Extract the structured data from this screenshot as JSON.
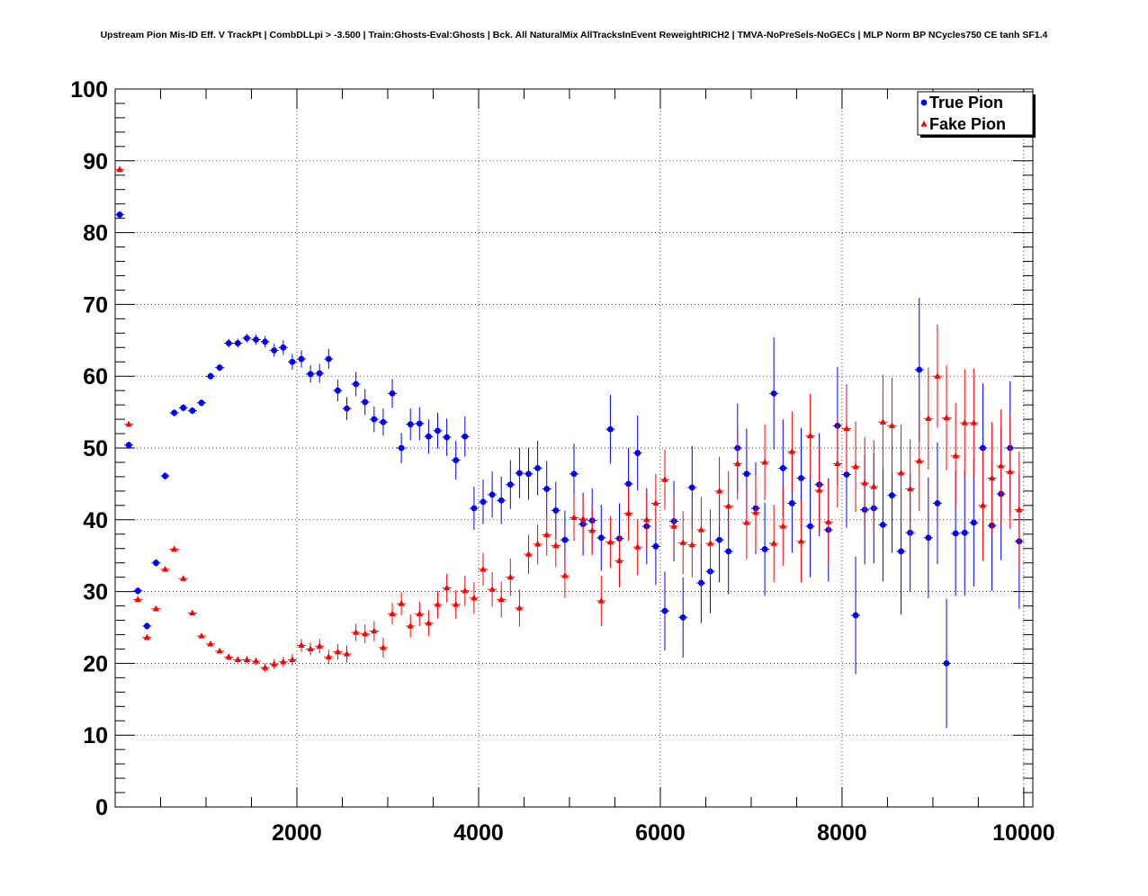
{
  "chart_data": {
    "type": "scatter",
    "title": "Upstream Pion Mis-ID Eff. V TrackPt | CombDLLpi > -3.500 | Train:Ghosts-Eval:Ghosts | Bck. All NaturalMix AllTracksInEvent ReweightRICH2 | TMVA-NoPreSels-NoGECs | MLP Norm BP NCycles750 CE tanh SF1.4",
    "xlabel": "",
    "ylabel": "",
    "xlim": [
      0,
      10100
    ],
    "ylim": [
      0,
      100
    ],
    "x_ticks": [
      "2000",
      "4000",
      "6000",
      "8000",
      "10000"
    ],
    "y_ticks": [
      "0",
      "10",
      "20",
      "30",
      "40",
      "50",
      "60",
      "70",
      "80",
      "90",
      "100"
    ],
    "grid": true,
    "legend_position": "top-right",
    "series": [
      {
        "name": "True Pion",
        "color": "#0000ff",
        "marker": "circle",
        "points": [
          [
            50,
            82.5,
            0.5
          ],
          [
            150,
            50.4,
            0.5
          ],
          [
            250,
            30.1,
            0.5
          ],
          [
            350,
            25.2,
            0.5
          ],
          [
            450,
            34.0,
            0.5
          ],
          [
            550,
            46.1,
            0.5
          ],
          [
            650,
            54.9,
            0.5
          ],
          [
            750,
            55.6,
            0.5
          ],
          [
            850,
            55.2,
            0.5
          ],
          [
            950,
            56.3,
            0.5
          ],
          [
            1050,
            60.0,
            0.5
          ],
          [
            1150,
            61.2,
            0.5
          ],
          [
            1250,
            64.6,
            0.6
          ],
          [
            1350,
            64.6,
            0.6
          ],
          [
            1450,
            65.3,
            0.6
          ],
          [
            1550,
            65.1,
            0.7
          ],
          [
            1650,
            64.8,
            0.8
          ],
          [
            1750,
            63.6,
            0.9
          ],
          [
            1850,
            64.0,
            1.0
          ],
          [
            1950,
            62.0,
            1.1
          ],
          [
            2050,
            62.4,
            1.2
          ],
          [
            2150,
            60.3,
            1.2
          ],
          [
            2250,
            60.4,
            1.3
          ],
          [
            2350,
            62.4,
            1.4
          ],
          [
            2450,
            58.0,
            1.5
          ],
          [
            2550,
            55.5,
            1.6
          ],
          [
            2650,
            58.9,
            1.7
          ],
          [
            2750,
            56.4,
            1.8
          ],
          [
            2850,
            54.0,
            1.8
          ],
          [
            2950,
            53.6,
            1.9
          ],
          [
            3050,
            57.6,
            2.0
          ],
          [
            3150,
            50.0,
            2.1
          ],
          [
            3250,
            53.3,
            2.2
          ],
          [
            3350,
            53.4,
            2.3
          ],
          [
            3450,
            51.6,
            2.4
          ],
          [
            3550,
            52.4,
            2.5
          ],
          [
            3650,
            51.5,
            2.6
          ],
          [
            3750,
            48.3,
            2.7
          ],
          [
            3850,
            51.6,
            2.8
          ],
          [
            3950,
            41.6,
            3.0
          ],
          [
            4050,
            42.5,
            3.1
          ],
          [
            4150,
            43.5,
            3.2
          ],
          [
            4250,
            42.7,
            3.3
          ],
          [
            4350,
            44.9,
            3.4
          ],
          [
            4450,
            46.5,
            3.5
          ],
          [
            4550,
            46.4,
            3.6
          ],
          [
            4650,
            47.2,
            3.8
          ],
          [
            4750,
            44.3,
            3.9
          ],
          [
            4850,
            41.3,
            4.0
          ],
          [
            4950,
            37.2,
            4.1
          ],
          [
            5050,
            46.4,
            4.2
          ],
          [
            5150,
            39.4,
            4.4
          ],
          [
            5250,
            39.9,
            4.5
          ],
          [
            5350,
            37.5,
            4.6
          ],
          [
            5450,
            52.6,
            4.8
          ],
          [
            5550,
            37.4,
            4.9
          ],
          [
            5650,
            45.0,
            5.0
          ],
          [
            5750,
            49.3,
            5.2
          ],
          [
            5850,
            39.1,
            5.3
          ],
          [
            5950,
            36.3,
            5.4
          ],
          [
            6050,
            27.3,
            5.5
          ],
          [
            6150,
            39.8,
            5.6
          ],
          [
            6250,
            26.4,
            5.6
          ],
          [
            6350,
            44.5,
            5.8
          ],
          [
            6450,
            31.2,
            5.6
          ],
          [
            6550,
            32.8,
            5.8
          ],
          [
            6650,
            37.2,
            5.9
          ],
          [
            6750,
            35.6,
            6.0
          ],
          [
            6850,
            50.0,
            6.2
          ],
          [
            6950,
            46.4,
            6.3
          ],
          [
            7050,
            41.6,
            6.4
          ],
          [
            7150,
            35.9,
            6.5
          ],
          [
            7250,
            57.6,
            7.8
          ],
          [
            7350,
            47.2,
            6.8
          ],
          [
            7450,
            42.3,
            6.9
          ],
          [
            7550,
            45.8,
            7.0
          ],
          [
            7650,
            39.1,
            7.1
          ],
          [
            7750,
            44.9,
            7.2
          ],
          [
            7850,
            38.6,
            7.2
          ],
          [
            7950,
            53.1,
            8.2
          ],
          [
            8050,
            46.3,
            7.4
          ],
          [
            8150,
            26.7,
            8.2
          ],
          [
            8250,
            41.4,
            7.6
          ],
          [
            8350,
            41.6,
            7.7
          ],
          [
            8450,
            39.3,
            7.9
          ],
          [
            8550,
            43.4,
            8.0
          ],
          [
            8650,
            35.6,
            8.8
          ],
          [
            8750,
            38.2,
            8.2
          ],
          [
            8850,
            60.9,
            10.0
          ],
          [
            8950,
            37.5,
            8.4
          ],
          [
            9050,
            42.3,
            8.5
          ],
          [
            9150,
            20.0,
            9.0
          ],
          [
            9250,
            38.1,
            8.7
          ],
          [
            9350,
            38.2,
            8.8
          ],
          [
            9450,
            39.6,
            8.9
          ],
          [
            9550,
            50.0,
            9.0
          ],
          [
            9650,
            39.2,
            9.1
          ],
          [
            9750,
            43.6,
            9.2
          ],
          [
            9850,
            50.0,
            9.3
          ],
          [
            9950,
            37.0,
            9.4
          ]
        ]
      },
      {
        "name": "Fake Pion",
        "color": "#ff0000",
        "marker": "triangle",
        "points": [
          [
            50,
            88.8,
            0.3
          ],
          [
            150,
            53.3,
            0.3
          ],
          [
            250,
            28.9,
            0.3
          ],
          [
            350,
            23.6,
            0.3
          ],
          [
            450,
            27.6,
            0.3
          ],
          [
            550,
            33.1,
            0.3
          ],
          [
            650,
            35.9,
            0.3
          ],
          [
            750,
            31.8,
            0.3
          ],
          [
            850,
            27.0,
            0.3
          ],
          [
            950,
            23.8,
            0.3
          ],
          [
            1050,
            22.7,
            0.3
          ],
          [
            1150,
            21.7,
            0.3
          ],
          [
            1250,
            20.9,
            0.4
          ],
          [
            1350,
            20.5,
            0.4
          ],
          [
            1450,
            20.5,
            0.5
          ],
          [
            1550,
            20.3,
            0.5
          ],
          [
            1650,
            19.4,
            0.6
          ],
          [
            1750,
            19.9,
            0.7
          ],
          [
            1850,
            20.2,
            0.7
          ],
          [
            1950,
            20.5,
            0.8
          ],
          [
            2050,
            22.5,
            0.9
          ],
          [
            2150,
            22.0,
            0.9
          ],
          [
            2250,
            22.4,
            1.0
          ],
          [
            2350,
            20.9,
            1.0
          ],
          [
            2450,
            21.6,
            1.1
          ],
          [
            2550,
            21.3,
            1.2
          ],
          [
            2650,
            24.3,
            1.2
          ],
          [
            2750,
            24.1,
            1.3
          ],
          [
            2850,
            24.5,
            1.4
          ],
          [
            2950,
            22.2,
            1.4
          ],
          [
            3050,
            26.9,
            1.5
          ],
          [
            3150,
            28.3,
            1.6
          ],
          [
            3250,
            25.2,
            1.6
          ],
          [
            3350,
            26.9,
            1.7
          ],
          [
            3450,
            25.6,
            1.8
          ],
          [
            3550,
            28.2,
            1.9
          ],
          [
            3650,
            30.5,
            2.0
          ],
          [
            3750,
            28.2,
            2.0
          ],
          [
            3850,
            30.1,
            2.1
          ],
          [
            3950,
            29.1,
            2.2
          ],
          [
            4050,
            33.1,
            2.3
          ],
          [
            4150,
            30.3,
            2.4
          ],
          [
            4250,
            28.9,
            2.5
          ],
          [
            4350,
            32.0,
            2.6
          ],
          [
            4450,
            27.7,
            2.6
          ],
          [
            4550,
            35.2,
            2.7
          ],
          [
            4650,
            36.6,
            2.8
          ],
          [
            4750,
            37.9,
            2.9
          ],
          [
            4850,
            36.4,
            3.0
          ],
          [
            4950,
            32.2,
            3.1
          ],
          [
            5050,
            40.3,
            3.2
          ],
          [
            5150,
            40.1,
            3.3
          ],
          [
            5250,
            38.5,
            3.4
          ],
          [
            5350,
            28.7,
            3.5
          ],
          [
            5450,
            36.9,
            3.6
          ],
          [
            5550,
            34.3,
            3.7
          ],
          [
            5650,
            40.9,
            3.8
          ],
          [
            5750,
            36.2,
            3.9
          ],
          [
            5850,
            40.0,
            4.0
          ],
          [
            5950,
            42.3,
            4.1
          ],
          [
            6050,
            45.6,
            4.2
          ],
          [
            6150,
            39.1,
            4.3
          ],
          [
            6250,
            36.8,
            4.4
          ],
          [
            6350,
            36.5,
            4.5
          ],
          [
            6450,
            38.6,
            4.6
          ],
          [
            6550,
            36.7,
            4.7
          ],
          [
            6650,
            44.0,
            4.8
          ],
          [
            6750,
            41.9,
            4.9
          ],
          [
            6850,
            47.8,
            5.0
          ],
          [
            6950,
            39.6,
            5.1
          ],
          [
            7050,
            41.0,
            5.2
          ],
          [
            7150,
            48.0,
            5.3
          ],
          [
            7250,
            36.7,
            5.4
          ],
          [
            7350,
            39.1,
            5.5
          ],
          [
            7450,
            49.5,
            5.6
          ],
          [
            7550,
            37.0,
            5.7
          ],
          [
            7650,
            51.7,
            5.8
          ],
          [
            7750,
            44.1,
            5.9
          ],
          [
            7850,
            39.7,
            6.0
          ],
          [
            7950,
            47.8,
            6.1
          ],
          [
            8050,
            52.7,
            6.2
          ],
          [
            8150,
            47.4,
            6.3
          ],
          [
            8250,
            45.1,
            6.4
          ],
          [
            8350,
            44.6,
            6.5
          ],
          [
            8450,
            53.6,
            6.6
          ],
          [
            8550,
            53.1,
            6.7
          ],
          [
            8650,
            46.5,
            6.8
          ],
          [
            8750,
            44.3,
            6.9
          ],
          [
            8850,
            48.2,
            7.0
          ],
          [
            8950,
            54.1,
            7.1
          ],
          [
            9050,
            60.0,
            7.2
          ],
          [
            9150,
            54.2,
            7.3
          ],
          [
            9250,
            48.9,
            7.4
          ],
          [
            9350,
            53.5,
            7.5
          ],
          [
            9450,
            53.5,
            7.6
          ],
          [
            9550,
            42.0,
            7.7
          ],
          [
            9650,
            45.8,
            7.8
          ],
          [
            9750,
            47.5,
            7.9
          ],
          [
            9850,
            46.7,
            8.0
          ],
          [
            9950,
            41.4,
            8.1
          ]
        ]
      }
    ]
  }
}
